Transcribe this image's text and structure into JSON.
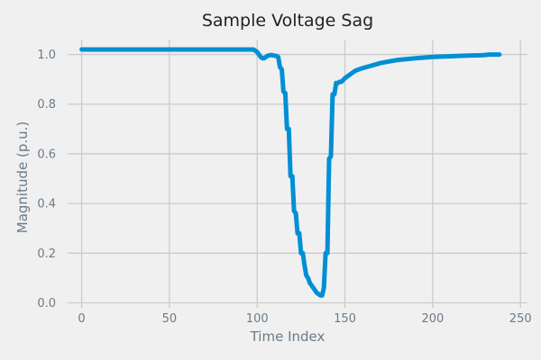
{
  "chart_data": {
    "type": "line",
    "title": "Sample Voltage Sag",
    "xlabel": "Time Index",
    "ylabel": "Magnitude (p.u.)",
    "xlim": [
      -8,
      254
    ],
    "ylim": [
      -0.02,
      1.06
    ],
    "xticks": [
      0,
      50,
      100,
      150,
      200,
      250
    ],
    "yticks": [
      0.0,
      0.2,
      0.4,
      0.6,
      0.8,
      1.0
    ],
    "xtick_labels": [
      "0",
      "50",
      "100",
      "150",
      "200",
      "250"
    ],
    "ytick_labels": [
      "0.0",
      "0.2",
      "0.4",
      "0.6",
      "0.8",
      "1.0"
    ],
    "grid": true,
    "series": [
      {
        "color": "#008fd5",
        "x": [
          0,
          20,
          40,
          60,
          80,
          96,
          98,
          100,
          101,
          102,
          103,
          104,
          105,
          106,
          108,
          110,
          111,
          112,
          113,
          114,
          115,
          116,
          117,
          118,
          119,
          120,
          121,
          122,
          123,
          124,
          125,
          126,
          127,
          128,
          129,
          130,
          131,
          132,
          133,
          134,
          135,
          136,
          137,
          138,
          139,
          140,
          141,
          142,
          143,
          144,
          145,
          146,
          147,
          148,
          150,
          153,
          156,
          160,
          165,
          170,
          175,
          180,
          190,
          200,
          210,
          220,
          228,
          230,
          232,
          238
        ],
        "y": [
          1.02,
          1.02,
          1.02,
          1.02,
          1.02,
          1.02,
          1.02,
          1.01,
          1.0,
          0.99,
          0.985,
          0.985,
          0.99,
          0.995,
          0.998,
          0.995,
          0.994,
          0.99,
          0.95,
          0.94,
          0.85,
          0.845,
          0.7,
          0.7,
          0.51,
          0.51,
          0.37,
          0.36,
          0.28,
          0.28,
          0.2,
          0.2,
          0.15,
          0.11,
          0.1,
          0.08,
          0.07,
          0.06,
          0.05,
          0.04,
          0.035,
          0.03,
          0.03,
          0.06,
          0.2,
          0.2,
          0.58,
          0.59,
          0.84,
          0.84,
          0.885,
          0.885,
          0.89,
          0.89,
          0.905,
          0.92,
          0.935,
          0.945,
          0.955,
          0.965,
          0.972,
          0.978,
          0.985,
          0.99,
          0.993,
          0.996,
          0.997,
          0.998,
          1.0,
          1.0
        ]
      }
    ]
  }
}
